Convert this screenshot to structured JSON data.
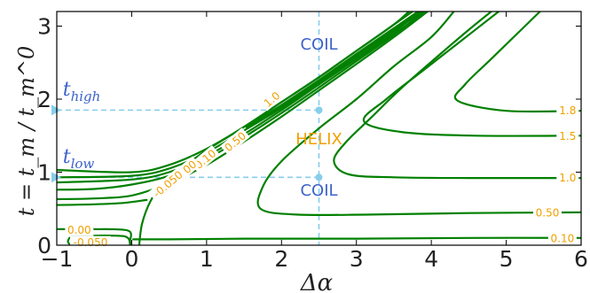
{
  "chart_data": {
    "type": "line",
    "title": "",
    "xlabel": "Δα",
    "ylabel": "t = t_m / t_m^0",
    "xlim": [
      -1,
      6
    ],
    "ylim": [
      0,
      3.2
    ],
    "x_ticks": [
      "−1",
      "0",
      "1",
      "2",
      "3",
      "4",
      "5",
      "6"
    ],
    "x_tick_values": [
      -1,
      0,
      1,
      2,
      3,
      4,
      5,
      6
    ],
    "y_ticks": [
      "0",
      "1",
      "2",
      "3"
    ],
    "y_tick_values": [
      0,
      1,
      2,
      3
    ],
    "grid": false,
    "line_color": "#008000",
    "reference_color": "#87ceeb",
    "annotation_blue": "#3d63c9",
    "annotation_orange": "#f0a000",
    "reference_lines": {
      "x": 2.5,
      "y_high": 1.85,
      "y_low": 0.93
    },
    "markers": [
      {
        "x": -1,
        "y": 1.85
      },
      {
        "x": -1,
        "y": 0.93
      },
      {
        "x": 2.5,
        "y": 1.85
      },
      {
        "x": 2.5,
        "y": 0.93
      }
    ],
    "annotations": [
      {
        "text": "COIL",
        "x": 2.5,
        "y": 2.68,
        "color": "blue"
      },
      {
        "text": "HELIX",
        "x": 2.5,
        "y": 1.38,
        "color": "orange"
      },
      {
        "text": "COIL",
        "x": 2.5,
        "y": 0.68,
        "color": "blue"
      }
    ],
    "t_labels": [
      {
        "main": "t",
        "sub": "high",
        "x": -0.92,
        "y": 2.05
      },
      {
        "main": "t",
        "sub": "low",
        "x": -0.92,
        "y": 1.13
      }
    ],
    "contour_labels": [
      {
        "text": "1.8",
        "x": 5.82,
        "y": 1.85
      },
      {
        "text": "1.5",
        "x": 5.82,
        "y": 1.5
      },
      {
        "text": "1.0",
        "x": 5.82,
        "y": 0.93
      },
      {
        "text": "0.50",
        "x": 5.55,
        "y": 0.45
      },
      {
        "text": "0.10",
        "x": 5.75,
        "y": 0.1
      },
      {
        "text": "0.00",
        "x": -0.7,
        "y": 0.21
      },
      {
        "text": "-0.050",
        "x": -0.55,
        "y": 0.04
      },
      {
        "text": "1.0",
        "x": 1.87,
        "y": 2.0,
        "rotate": -40
      },
      {
        "text": "0.50",
        "x": 1.38,
        "y": 1.42,
        "rotate": -40
      },
      {
        "text": "0.10",
        "x": 0.98,
        "y": 1.18,
        "rotate": -40
      },
      {
        "text": "0.00",
        "x": 0.72,
        "y": 1.03,
        "rotate": -40
      },
      {
        "text": "-0.050",
        "x": 0.48,
        "y": 0.84,
        "rotate": -40
      }
    ],
    "series": [
      {
        "width": 2.2,
        "points": [
          [
            -1,
            0.93
          ],
          [
            0,
            0.95
          ],
          [
            0.5,
            1.05
          ],
          [
            1,
            1.27
          ],
          [
            1.5,
            1.57
          ],
          [
            2,
            1.9
          ],
          [
            2.5,
            2.25
          ],
          [
            3,
            2.6
          ],
          [
            3.5,
            2.95
          ],
          [
            3.9,
            3.2
          ]
        ]
      },
      {
        "width": 2.2,
        "points": [
          [
            -1,
            0.86
          ],
          [
            0,
            0.9
          ],
          [
            0.5,
            1.0
          ],
          [
            1,
            1.22
          ],
          [
            1.5,
            1.52
          ],
          [
            2,
            1.85
          ],
          [
            2.5,
            2.2
          ],
          [
            3,
            2.55
          ],
          [
            3.5,
            2.9
          ],
          [
            3.95,
            3.2
          ]
        ]
      },
      {
        "width": 2.2,
        "points": [
          [
            -1,
            1.03
          ],
          [
            0,
            1.0
          ],
          [
            0.5,
            1.1
          ],
          [
            1,
            1.32
          ],
          [
            1.5,
            1.62
          ],
          [
            2,
            1.96
          ],
          [
            2.5,
            2.3
          ],
          [
            3,
            2.66
          ],
          [
            3.5,
            3.02
          ],
          [
            3.75,
            3.2
          ]
        ]
      },
      {
        "width": 5,
        "points": [
          [
            1.55,
            1.62
          ],
          [
            2,
            1.9
          ],
          [
            2.5,
            2.24
          ],
          [
            3,
            2.6
          ],
          [
            3.5,
            2.95
          ],
          [
            3.85,
            3.2
          ]
        ]
      },
      {
        "width": 2.2,
        "points": [
          [
            -1,
            0.76
          ],
          [
            -0.5,
            0.77
          ],
          [
            0,
            0.83
          ],
          [
            0.5,
            0.95
          ],
          [
            1,
            1.18
          ],
          [
            1.5,
            1.48
          ],
          [
            2,
            1.81
          ],
          [
            2.5,
            2.16
          ],
          [
            3,
            2.52
          ],
          [
            3.5,
            2.88
          ],
          [
            3.9,
            3.2
          ]
        ]
      },
      {
        "width": 2.2,
        "points": [
          [
            -1,
            0.63
          ],
          [
            -0.5,
            0.64
          ],
          [
            0,
            0.68
          ],
          [
            0.5,
            0.85
          ],
          [
            1,
            1.1
          ],
          [
            1.5,
            1.42
          ],
          [
            2,
            1.76
          ],
          [
            2.5,
            2.12
          ],
          [
            3,
            2.48
          ],
          [
            3.5,
            2.85
          ],
          [
            3.95,
            3.2
          ]
        ]
      },
      {
        "width": 2.2,
        "points": [
          [
            -1,
            0.55
          ],
          [
            -0.5,
            0.56
          ],
          [
            -0.1,
            0.58
          ],
          [
            0.2,
            0.62
          ]
        ]
      },
      {
        "width": 2.2,
        "points": [
          [
            0.1,
            0.0
          ],
          [
            0.14,
            0.3
          ],
          [
            0.25,
            0.6
          ],
          [
            0.45,
            0.9
          ],
          [
            0.7,
            1.08
          ],
          [
            1,
            1.3
          ],
          [
            1.5,
            1.62
          ],
          [
            2,
            1.96
          ],
          [
            2.5,
            2.3
          ],
          [
            3,
            2.66
          ],
          [
            3.5,
            3.02
          ],
          [
            3.7,
            3.2
          ]
        ]
      },
      {
        "width": 2.2,
        "points": [
          [
            -1,
            0.22
          ],
          [
            -0.5,
            0.22
          ],
          [
            -0.05,
            0.2
          ],
          [
            -0.02,
            0.05
          ],
          [
            0,
            0.0
          ]
        ]
      },
      {
        "width": 2.2,
        "points": [
          [
            -0.82,
            0.0
          ],
          [
            -0.85,
            0.06
          ],
          [
            -0.75,
            0.12
          ],
          [
            -0.2,
            0.13
          ],
          [
            -0.05,
            0.1
          ],
          [
            -0.02,
            0.0
          ]
        ]
      },
      {
        "width": 2.2,
        "points": [
          [
            0.02,
            0.08
          ],
          [
            0.5,
            0.08
          ],
          [
            1.5,
            0.09
          ],
          [
            3,
            0.09
          ],
          [
            4.5,
            0.1
          ],
          [
            6,
            0.1
          ]
        ]
      },
      {
        "width": 2.2,
        "points": [
          [
            6,
            0.45
          ],
          [
            4.5,
            0.44
          ],
          [
            3.2,
            0.42
          ],
          [
            2.2,
            0.42
          ],
          [
            1.72,
            0.5
          ],
          [
            1.75,
            0.8
          ],
          [
            2.0,
            1.15
          ],
          [
            2.5,
            1.6
          ],
          [
            3,
            2.0
          ],
          [
            3.5,
            2.45
          ],
          [
            4,
            2.85
          ],
          [
            4.3,
            3.2
          ]
        ]
      },
      {
        "width": 2.2,
        "points": [
          [
            6,
            0.92
          ],
          [
            4.5,
            0.92
          ],
          [
            3.5,
            0.93
          ],
          [
            2.9,
            0.97
          ],
          [
            2.7,
            1.15
          ],
          [
            2.85,
            1.4
          ],
          [
            3.2,
            1.75
          ],
          [
            3.6,
            2.15
          ],
          [
            4.1,
            2.6
          ],
          [
            4.5,
            2.95
          ],
          [
            4.8,
            3.2
          ]
        ]
      },
      {
        "width": 2.2,
        "points": [
          [
            6,
            1.5
          ],
          [
            4.6,
            1.5
          ],
          [
            3.6,
            1.55
          ],
          [
            3.1,
            1.7
          ],
          [
            3.4,
            2.0
          ],
          [
            3.9,
            2.4
          ],
          [
            4.4,
            2.8
          ],
          [
            4.9,
            3.2
          ]
        ]
      },
      {
        "width": 2.2,
        "points": [
          [
            6,
            1.84
          ],
          [
            5,
            1.84
          ],
          [
            4.35,
            1.98
          ],
          [
            4.45,
            2.2
          ],
          [
            4.8,
            2.55
          ],
          [
            5.25,
            3.0
          ],
          [
            5.45,
            3.2
          ]
        ]
      }
    ]
  }
}
